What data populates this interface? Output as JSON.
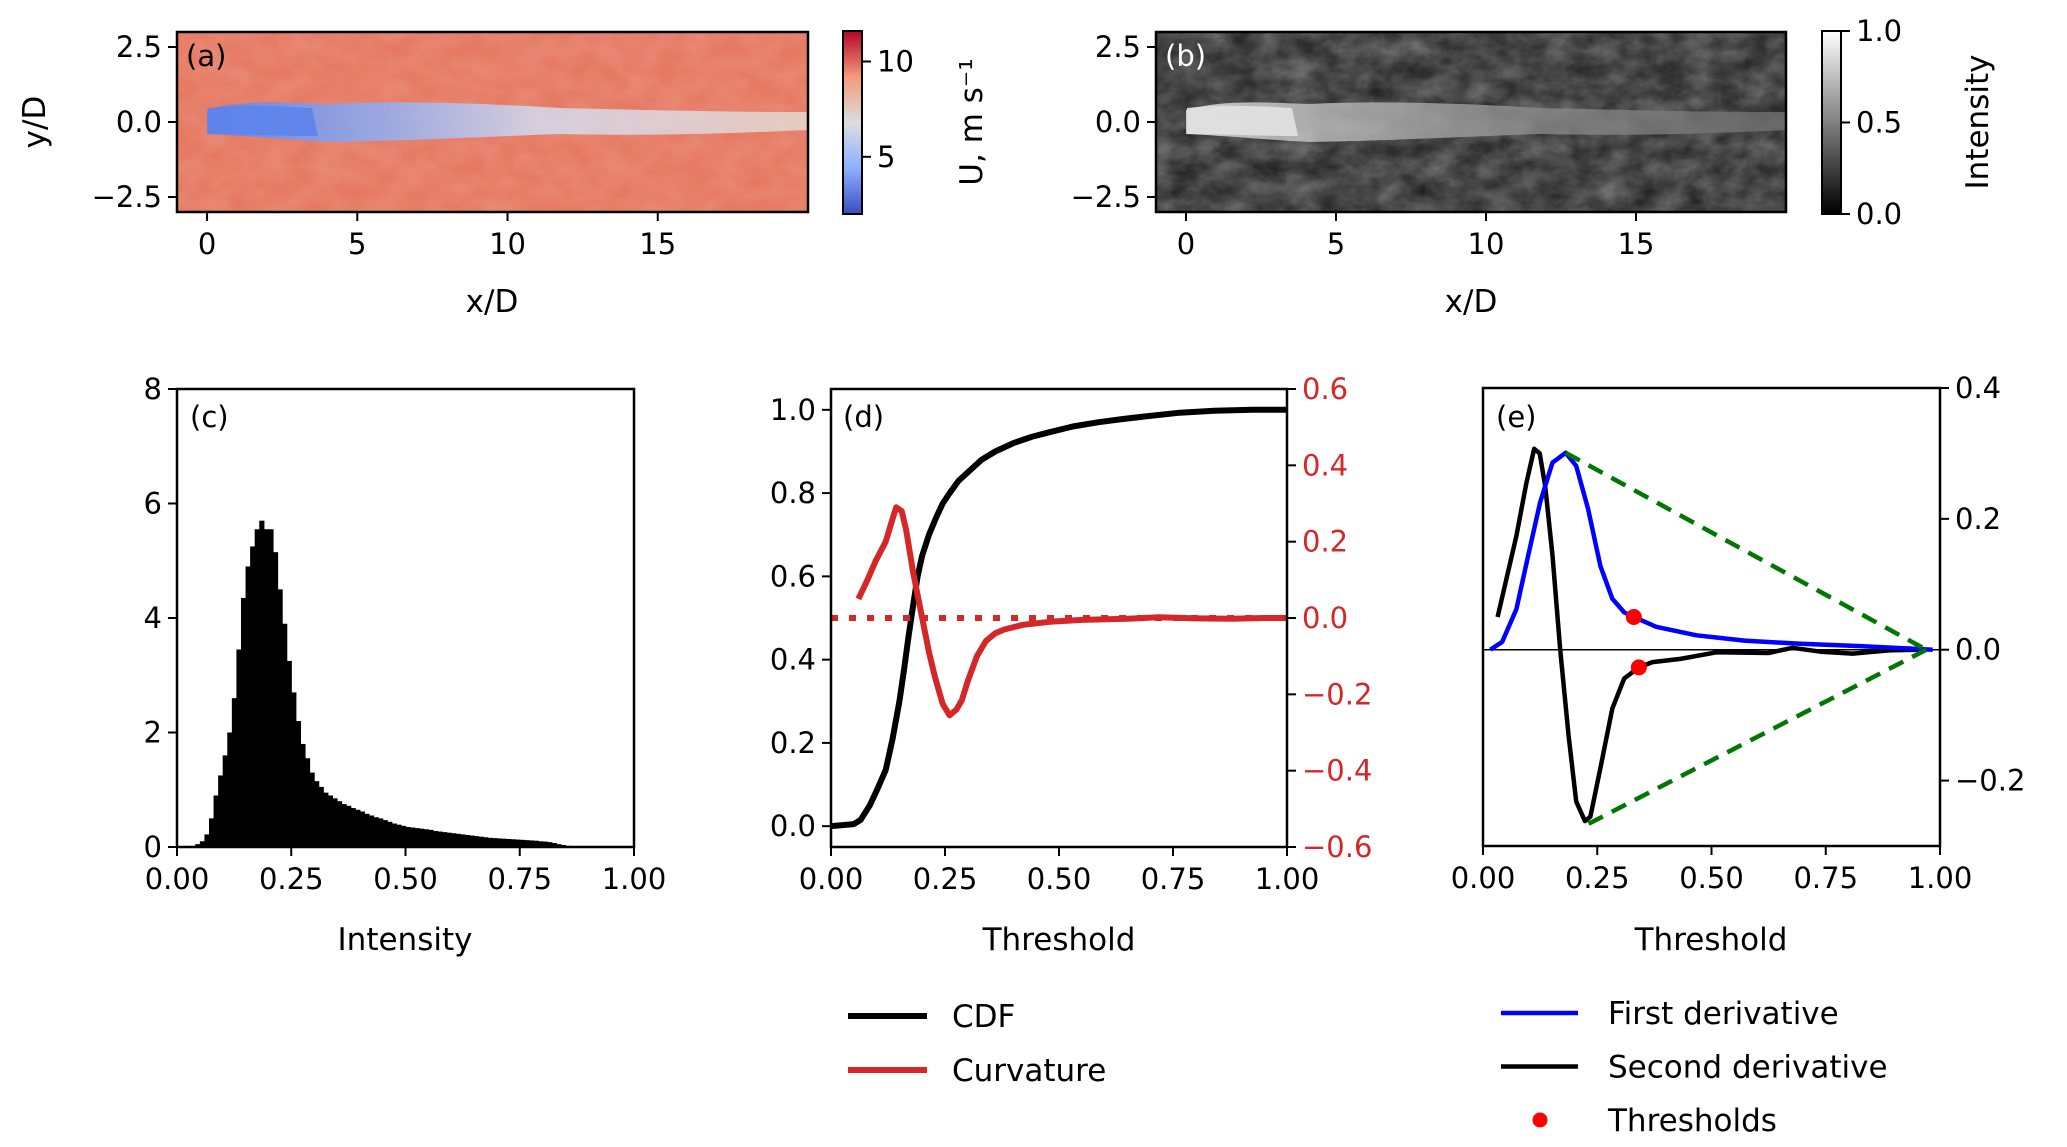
{
  "figure": {
    "panels": [
      "(a)",
      "(b)",
      "(c)",
      "(d)",
      "(e)"
    ]
  },
  "chart_data": [
    {
      "id": "a",
      "type": "heatmap",
      "panel_label": "(a)",
      "description": "Streamwise velocity field of a wake, low-velocity (blue) region along y/D = 0 downstream of x/D = 0",
      "xlabel": "x/D",
      "ylabel": "y/D",
      "xticks": [
        0,
        5,
        10,
        15
      ],
      "xtick_labels": [
        "0",
        "5",
        "10",
        "15"
      ],
      "yticks": [
        2.5,
        0.0,
        -2.5
      ],
      "ytick_labels": [
        "2.5",
        "0.0",
        "−2.5"
      ],
      "xlim": [
        -1,
        20
      ],
      "ylim": [
        -3,
        3
      ],
      "colormap": "coolwarm",
      "colorbar": {
        "label": "U, m s⁻¹",
        "ticks": [
          5,
          10
        ],
        "tick_labels": [
          "5",
          "10"
        ],
        "range": [
          2,
          11.6
        ],
        "colors": [
          "#3b4cc0",
          "#8db0fe",
          "#dddddd",
          "#f49a7b",
          "#b40426"
        ]
      },
      "background_color": "#e8765e",
      "wake_color": "#6a8ef0"
    },
    {
      "id": "b",
      "type": "heatmap",
      "panel_label": "(b)",
      "description": "Normalized intensity image of the same wake, bright along y/D = 0",
      "xlabel": "x/D",
      "ylabel": "",
      "xticks": [
        0,
        5,
        10,
        15
      ],
      "xtick_labels": [
        "0",
        "5",
        "10",
        "15"
      ],
      "yticks": [
        2.5,
        0.0,
        -2.5
      ],
      "ytick_labels": [
        "2.5",
        "0.0",
        "−2.5"
      ],
      "xlim": [
        -1,
        20
      ],
      "ylim": [
        -3,
        3
      ],
      "colormap": "gray",
      "colorbar": {
        "label": "Intensity",
        "ticks": [
          0.0,
          0.5,
          1.0
        ],
        "tick_labels": [
          "0.0",
          "0.5",
          "1.0"
        ],
        "range": [
          0,
          1
        ],
        "colors": [
          "#000000",
          "#ffffff"
        ]
      }
    },
    {
      "id": "c",
      "type": "bar",
      "subtype": "histogram",
      "panel_label": "(c)",
      "xlabel": "Intensity",
      "ylabel": "",
      "xlim": [
        0,
        1
      ],
      "ylim": [
        0,
        8
      ],
      "xticks": [
        0.0,
        0.25,
        0.5,
        0.75,
        1.0
      ],
      "xtick_labels": [
        "0.00",
        "0.25",
        "0.50",
        "0.75",
        "1.00"
      ],
      "yticks": [
        0,
        2,
        4,
        6,
        8
      ],
      "ytick_labels": [
        "0",
        "2",
        "4",
        "6",
        "8"
      ],
      "bin_width": 0.01,
      "bin_start": 0.0,
      "values": [
        0,
        0,
        0.01,
        0.02,
        0.05,
        0.1,
        0.22,
        0.5,
        0.9,
        1.25,
        1.6,
        2.0,
        2.6,
        3.45,
        4.35,
        4.9,
        5.25,
        5.55,
        5.7,
        5.55,
        5.55,
        5.15,
        4.5,
        3.9,
        3.25,
        2.7,
        2.2,
        1.8,
        1.55,
        1.3,
        1.15,
        1.05,
        0.95,
        0.9,
        0.85,
        0.8,
        0.75,
        0.72,
        0.68,
        0.65,
        0.62,
        0.58,
        0.55,
        0.52,
        0.5,
        0.47,
        0.44,
        0.41,
        0.39,
        0.37,
        0.35,
        0.34,
        0.33,
        0.32,
        0.31,
        0.3,
        0.28,
        0.27,
        0.26,
        0.25,
        0.24,
        0.23,
        0.22,
        0.21,
        0.2,
        0.19,
        0.18,
        0.17,
        0.16,
        0.155,
        0.15,
        0.145,
        0.14,
        0.135,
        0.13,
        0.125,
        0.12,
        0.115,
        0.11,
        0.1,
        0.095,
        0.085,
        0.07,
        0.05,
        0.035,
        0.02,
        0.01,
        0.005,
        0,
        0,
        0,
        0,
        0,
        0,
        0,
        0,
        0,
        0,
        0,
        0
      ],
      "color": "#000000"
    },
    {
      "id": "d",
      "type": "line",
      "panel_label": "(d)",
      "xlabel": "Threshold",
      "xlim": [
        0,
        1
      ],
      "xticks": [
        0.0,
        0.25,
        0.5,
        0.75,
        1.0
      ],
      "xtick_labels": [
        "0.00",
        "0.25",
        "0.50",
        "0.75",
        "1.00"
      ],
      "y_left": {
        "label": "",
        "lim": [
          -0.05,
          1.05
        ],
        "ticks": [
          0.0,
          0.2,
          0.4,
          0.6,
          0.8,
          1.0
        ],
        "tick_labels": [
          "0.0",
          "0.2",
          "0.4",
          "0.6",
          "0.8",
          "1.0"
        ]
      },
      "y_right": {
        "label": "",
        "lim": [
          -0.6,
          0.6
        ],
        "ticks": [
          -0.6,
          -0.4,
          -0.2,
          0.0,
          0.2,
          0.4,
          0.6
        ],
        "tick_labels": [
          "−0.6",
          "−0.4",
          "−0.2",
          "0.0",
          "0.2",
          "0.4",
          "0.6"
        ],
        "color": "#d62728"
      },
      "series": [
        {
          "name": "CDF",
          "axis": "left",
          "color": "#000000",
          "x": [
            0.0,
            0.05,
            0.065,
            0.085,
            0.1,
            0.12,
            0.135,
            0.15,
            0.16,
            0.17,
            0.18,
            0.19,
            0.2,
            0.215,
            0.23,
            0.245,
            0.26,
            0.28,
            0.3,
            0.33,
            0.36,
            0.4,
            0.44,
            0.475,
            0.53,
            0.585,
            0.64,
            0.695,
            0.765,
            0.84,
            0.925,
            1.0
          ],
          "y": [
            0.0,
            0.005,
            0.015,
            0.05,
            0.085,
            0.135,
            0.21,
            0.3,
            0.375,
            0.455,
            0.53,
            0.6,
            0.65,
            0.7,
            0.74,
            0.775,
            0.8,
            0.83,
            0.85,
            0.88,
            0.9,
            0.92,
            0.935,
            0.945,
            0.96,
            0.97,
            0.978,
            0.985,
            0.993,
            0.998,
            1.0,
            1.0
          ]
        },
        {
          "name": "Curvature",
          "axis": "right",
          "color": "#d62728",
          "x": [
            0.06,
            0.08,
            0.098,
            0.12,
            0.135,
            0.143,
            0.155,
            0.165,
            0.18,
            0.2,
            0.215,
            0.228,
            0.245,
            0.26,
            0.275,
            0.287,
            0.3,
            0.32,
            0.34,
            0.36,
            0.38,
            0.42,
            0.48,
            0.55,
            0.65,
            0.72,
            0.8,
            0.88,
            0.95,
            1.0
          ],
          "y": [
            0.05,
            0.1,
            0.15,
            0.2,
            0.26,
            0.29,
            0.28,
            0.23,
            0.12,
            0.0,
            -0.09,
            -0.155,
            -0.225,
            -0.255,
            -0.24,
            -0.215,
            -0.165,
            -0.1,
            -0.06,
            -0.04,
            -0.03,
            -0.018,
            -0.01,
            -0.005,
            -0.002,
            0.002,
            -0.001,
            -0.002,
            0.0,
            0.0
          ]
        },
        {
          "name": "zero-reference",
          "axis": "right",
          "style": "dotted",
          "color": "#d62728",
          "x": [
            0.0,
            1.0
          ],
          "y": [
            0.0,
            0.0
          ]
        }
      ],
      "legend": {
        "placement": "below",
        "entries": [
          {
            "label": "CDF",
            "color": "#000000",
            "marker": "line"
          },
          {
            "label": "Curvature",
            "color": "#d62728",
            "marker": "line"
          }
        ]
      }
    },
    {
      "id": "e",
      "type": "line",
      "panel_label": "(e)",
      "xlabel": "Threshold",
      "xlim": [
        0,
        1
      ],
      "ylim": [
        -0.3,
        0.4
      ],
      "xticks": [
        0.0,
        0.25,
        0.5,
        0.75,
        1.0
      ],
      "xtick_labels": [
        "0.00",
        "0.25",
        "0.50",
        "0.75",
        "1.00"
      ],
      "yticks": [
        -0.2,
        0.0,
        0.2,
        0.4
      ],
      "ytick_labels": [
        "−0.2",
        "0.0",
        "0.2",
        "0.4"
      ],
      "y_axis_side": "right",
      "series": [
        {
          "name": "First derivative",
          "color": "#0000ff",
          "x": [
            0.016,
            0.042,
            0.073,
            0.099,
            0.125,
            0.152,
            0.181,
            0.204,
            0.23,
            0.257,
            0.283,
            0.309,
            0.33,
            0.379,
            0.467,
            0.572,
            0.695,
            0.826,
            0.914,
            0.984
          ],
          "y": [
            0.0,
            0.012,
            0.062,
            0.144,
            0.225,
            0.286,
            0.301,
            0.281,
            0.215,
            0.128,
            0.078,
            0.057,
            0.05,
            0.035,
            0.022,
            0.014,
            0.009,
            0.0056,
            0.0025,
            0.0
          ]
        },
        {
          "name": "Second derivative",
          "color": "#000000",
          "x": [
            0.032,
            0.073,
            0.095,
            0.112,
            0.124,
            0.136,
            0.152,
            0.169,
            0.187,
            0.204,
            0.223,
            0.235,
            0.257,
            0.283,
            0.309,
            0.341,
            0.371,
            0.432,
            0.511,
            0.625,
            0.677,
            0.739,
            0.809,
            0.888,
            0.958
          ],
          "y": [
            0.05,
            0.174,
            0.255,
            0.307,
            0.3,
            0.25,
            0.144,
            0.0,
            -0.13,
            -0.232,
            -0.262,
            -0.255,
            -0.181,
            -0.09,
            -0.044,
            -0.027,
            -0.019,
            -0.014,
            -0.004,
            -0.005,
            0.003,
            -0.003,
            -0.006,
            -0.001,
            0.0
          ]
        },
        {
          "name": "Thresholds",
          "type": "scatter",
          "color": "#ff0000",
          "x": [
            0.33,
            0.341
          ],
          "y": [
            0.05,
            -0.027
          ]
        },
        {
          "name": "upper-triangle-line",
          "style": "dashed",
          "color": "#007700",
          "x": [
            0.181,
            0.97
          ],
          "y": [
            0.301,
            0.0
          ]
        },
        {
          "name": "lower-triangle-line",
          "style": "dashed",
          "color": "#007700",
          "x": [
            0.231,
            0.97
          ],
          "y": [
            -0.266,
            0.0
          ]
        },
        {
          "name": "zero-line",
          "style": "thin",
          "color": "#000000",
          "x": [
            0.0,
            1.0
          ],
          "y": [
            0.0,
            0.0
          ]
        }
      ],
      "legend": {
        "placement": "below",
        "entries": [
          {
            "label": "First derivative",
            "color": "#0000ff",
            "marker": "line"
          },
          {
            "label": "Second derivative",
            "color": "#000000",
            "marker": "line"
          },
          {
            "label": "Thresholds",
            "color": "#ff0000",
            "marker": "dot"
          }
        ]
      }
    }
  ]
}
